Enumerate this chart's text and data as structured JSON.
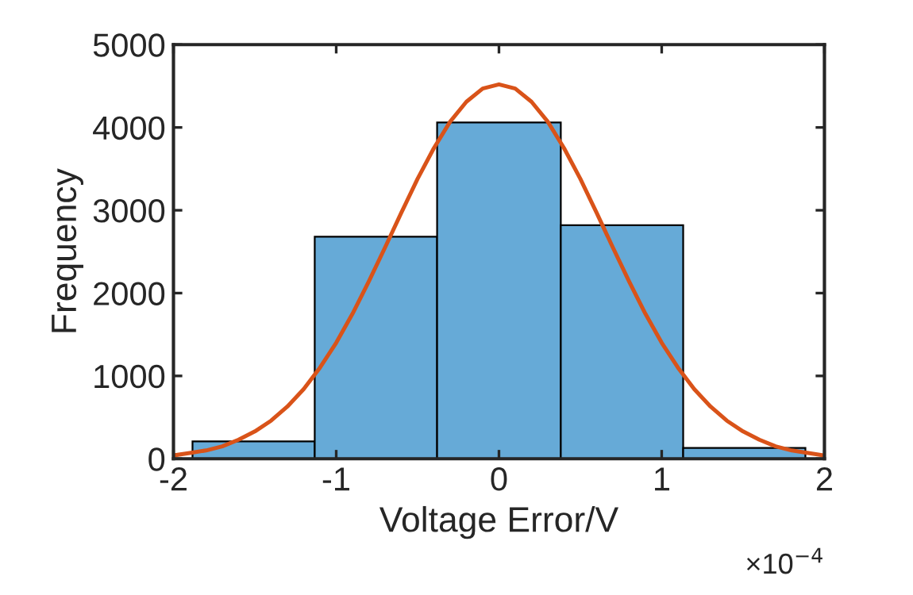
{
  "chart_data": {
    "type": "histogram",
    "xlabel": "Voltage Error/V",
    "ylabel": "Frequency",
    "annotations": [
      "×10$^{−4}$"
    ],
    "xlim": [
      -2,
      2
    ],
    "xticks": [
      -2,
      -1,
      0,
      1,
      2
    ],
    "ylim": [
      0,
      5000
    ],
    "yticks": [
      0,
      1000,
      2000,
      3000,
      4000,
      5000
    ],
    "grid": false,
    "series": [
      {
        "color": "#66aad7",
        "bins": [
          -1.883,
          -1.132,
          -0.38,
          0.38,
          1.132,
          1.883
        ],
        "values": [
          210,
          2680,
          4060,
          2820,
          130
        ]
      },
      {
        "type": "line",
        "color": "#d95319",
        "x": [
          -2,
          -1.9,
          -1.8,
          -1.7,
          -1.6,
          -1.5,
          -1.4,
          -1.3,
          -1.2,
          -1.1,
          -1.0,
          -0.9,
          -0.8,
          -0.7,
          -0.6,
          -0.5,
          -0.4,
          -0.3,
          -0.2,
          -0.1,
          0,
          0.1,
          0.2,
          0.3,
          0.4,
          0.5,
          0.6,
          0.7,
          0.8,
          0.9,
          1.0,
          1.1,
          1.2,
          1.3,
          1.4,
          1.5,
          1.6,
          1.7,
          1.8,
          1.9,
          2.0
        ],
        "values": [
          40,
          70,
          100,
          150,
          230,
          330,
          460,
          630,
          840,
          1100,
          1400,
          1750,
          2140,
          2550,
          2970,
          3380,
          3750,
          4070,
          4310,
          4470,
          4520,
          4470,
          4310,
          4070,
          3750,
          3380,
          2970,
          2550,
          2140,
          1750,
          1400,
          1100,
          840,
          630,
          460,
          330,
          230,
          150,
          100,
          70,
          40
        ]
      }
    ]
  }
}
